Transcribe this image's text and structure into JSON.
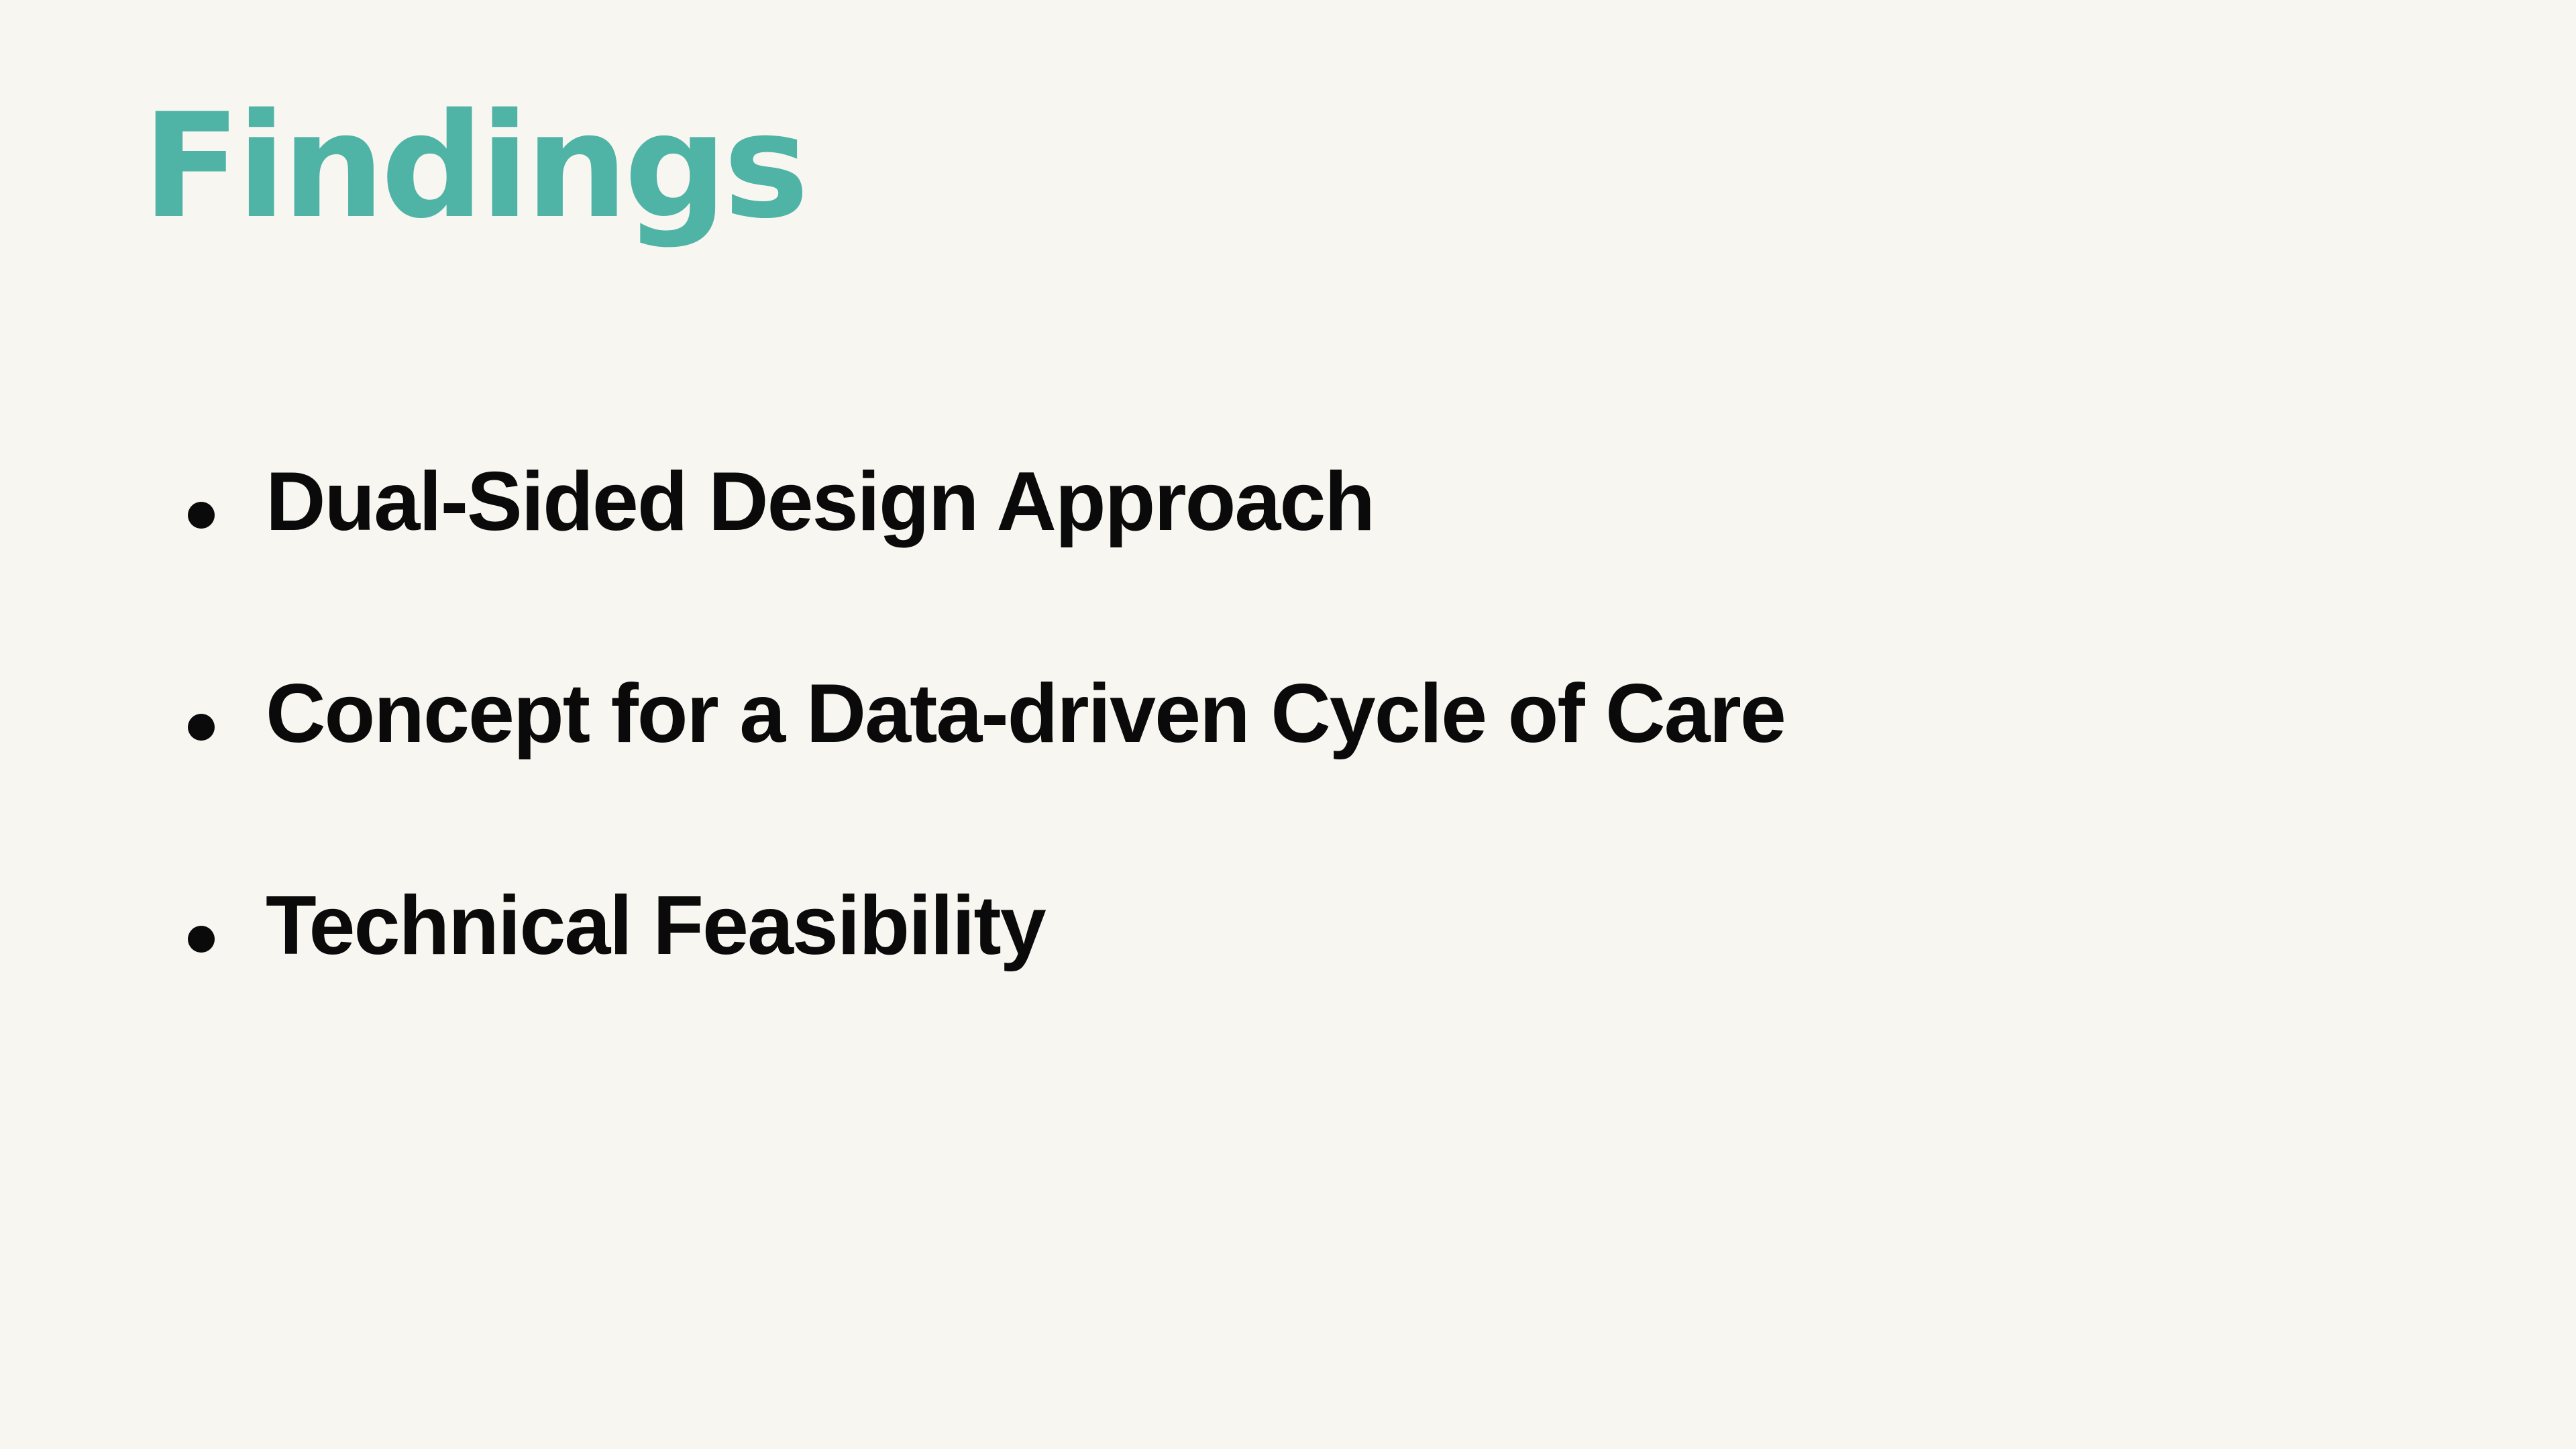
{
  "slide": {
    "title": "Findings",
    "bullets": [
      {
        "text": "Dual-Sided Design Approach"
      },
      {
        "text": "Concept for a Data-driven Cycle of Care"
      },
      {
        "text": "Technical Feasibility"
      }
    ]
  },
  "colors": {
    "background": "#f8f6f0",
    "title": "#4fb3a6",
    "body_text": "#0a0a0a"
  }
}
